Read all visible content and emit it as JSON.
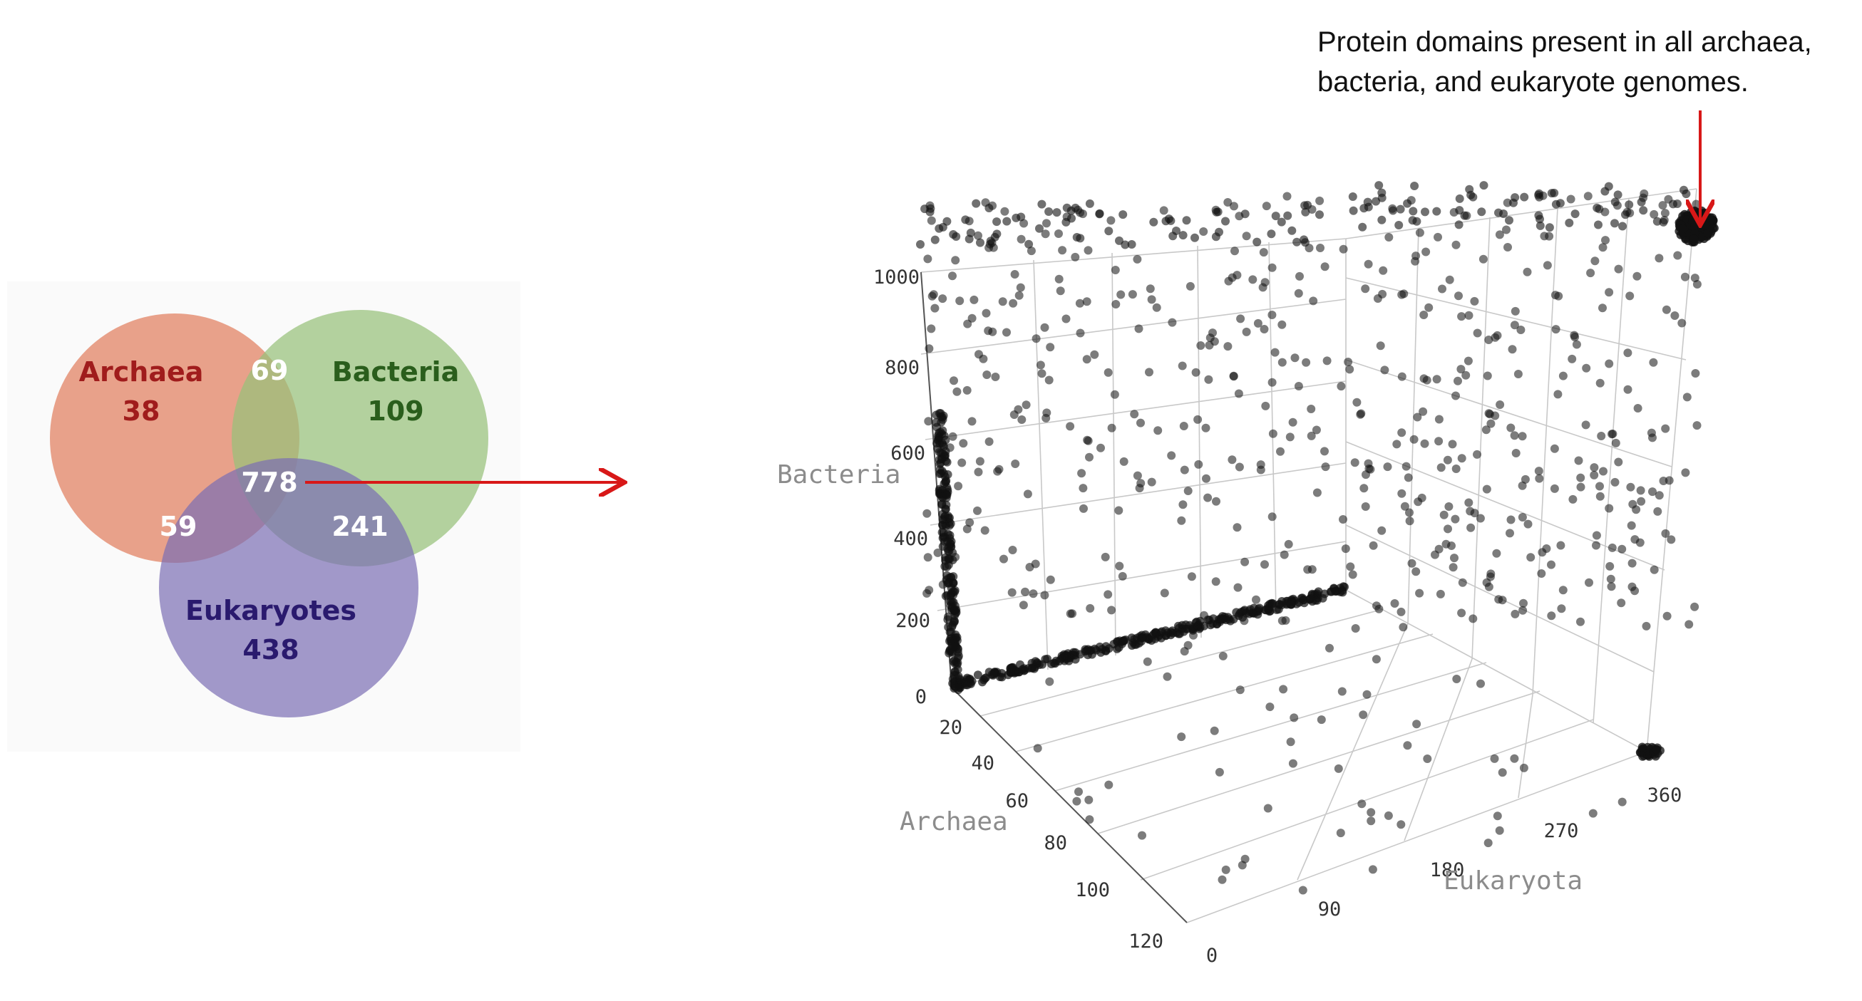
{
  "venn": {
    "archaea": {
      "label": "Archaea",
      "value": "38",
      "color": "#e3886a"
    },
    "bacteria": {
      "label": "Bacteria",
      "value": "109",
      "color": "#97c07a"
    },
    "eukaryotes": {
      "label": "Eukaryotes",
      "value": "438",
      "color": "#7a6db4"
    },
    "archaea_bacteria": "69",
    "archaea_eukaryotes": "59",
    "bacteria_eukaryotes": "241",
    "all_three": "778",
    "label_colors": {
      "archaea": "#a01c1c",
      "bacteria": "#2a5e1c",
      "eukaryotes": "#2a1a6e"
    }
  },
  "arrow_color": "#d81818",
  "annotation": {
    "line1": "Protein domains present in all archaea,",
    "line2": "bacteria, and eukaryote genomes."
  },
  "chart_data": {
    "type": "scatter",
    "dims": "3d",
    "axes": {
      "bacteria": {
        "title": "Bacteria",
        "ticks": [
          "0",
          "200",
          "400",
          "600",
          "800",
          "1000"
        ],
        "range": [
          0,
          1100
        ]
      },
      "archaea": {
        "title": "Archaea",
        "ticks": [
          "20",
          "40",
          "60",
          "80",
          "100",
          "120"
        ],
        "range": [
          0,
          125
        ]
      },
      "eukaryota": {
        "title": "Eukaryota",
        "ticks": [
          "0",
          "90",
          "180",
          "270",
          "360"
        ],
        "range": [
          0,
          440
        ]
      }
    },
    "note": "Dense cluster of points near the corner where all three counts are maximal (domains present in all genomes); heavy line of points along low-archaea, low-bacteria edge."
  }
}
